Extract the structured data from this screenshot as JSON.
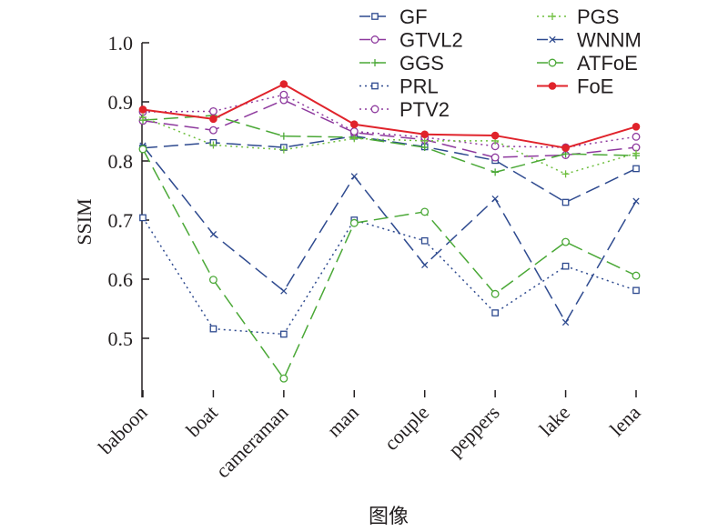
{
  "chart_data": {
    "type": "line",
    "title": "",
    "xlabel": "图像",
    "ylabel": "SSIM",
    "categories": [
      "baboon",
      "boat",
      "cameraman",
      "man",
      "couple",
      "peppers",
      "lake",
      "lena"
    ],
    "ylim": [
      0.4,
      1.0
    ],
    "yticks": [
      "0.5",
      "0.6",
      "0.7",
      "0.8",
      "0.9",
      "1.0"
    ],
    "grid": false,
    "legend_position": "top-right",
    "series": [
      {
        "name": "GF",
        "color": "#2e4a8f",
        "dash": "long-dash",
        "marker": "square",
        "values": [
          0.822,
          0.831,
          0.823,
          0.842,
          0.824,
          0.801,
          0.73,
          0.787
        ]
      },
      {
        "name": "GTVL2",
        "color": "#8e3a9e",
        "dash": "long-dash",
        "marker": "circle",
        "values": [
          0.868,
          0.852,
          0.903,
          0.848,
          0.836,
          0.806,
          0.81,
          0.823
        ]
      },
      {
        "name": "GGS",
        "color": "#4aa836",
        "dash": "long-dash",
        "marker": "plus",
        "values": [
          0.869,
          0.877,
          0.842,
          0.84,
          0.823,
          0.781,
          0.812,
          0.809
        ]
      },
      {
        "name": "PRL",
        "color": "#2e4a8f",
        "dash": "dotted",
        "marker": "square",
        "values": [
          0.704,
          0.516,
          0.507,
          0.7,
          0.665,
          0.543,
          0.622,
          0.581
        ]
      },
      {
        "name": "PTV2",
        "color": "#8e3a9e",
        "dash": "dotted",
        "marker": "circle",
        "values": [
          0.883,
          0.884,
          0.912,
          0.85,
          0.84,
          0.825,
          0.823,
          0.841
        ]
      },
      {
        "name": "PGS",
        "color": "#6fbf3f",
        "dash": "dotted",
        "marker": "plus",
        "values": [
          0.874,
          0.827,
          0.819,
          0.838,
          0.834,
          0.834,
          0.778,
          0.813
        ]
      },
      {
        "name": "WNNM",
        "color": "#2e4a8f",
        "dash": "long-dash",
        "marker": "x",
        "values": [
          0.826,
          0.676,
          0.58,
          0.774,
          0.624,
          0.736,
          0.527,
          0.732
        ]
      },
      {
        "name": "ATFoE",
        "color": "#4aa836",
        "dash": "long-dash",
        "marker": "circle",
        "values": [
          0.82,
          0.599,
          0.432,
          0.695,
          0.714,
          0.575,
          0.663,
          0.606
        ]
      },
      {
        "name": "FoE",
        "color": "#e0232b",
        "dash": "solid",
        "marker": "filled-circle",
        "values": [
          0.887,
          0.871,
          0.93,
          0.862,
          0.845,
          0.843,
          0.822,
          0.858
        ]
      }
    ]
  }
}
